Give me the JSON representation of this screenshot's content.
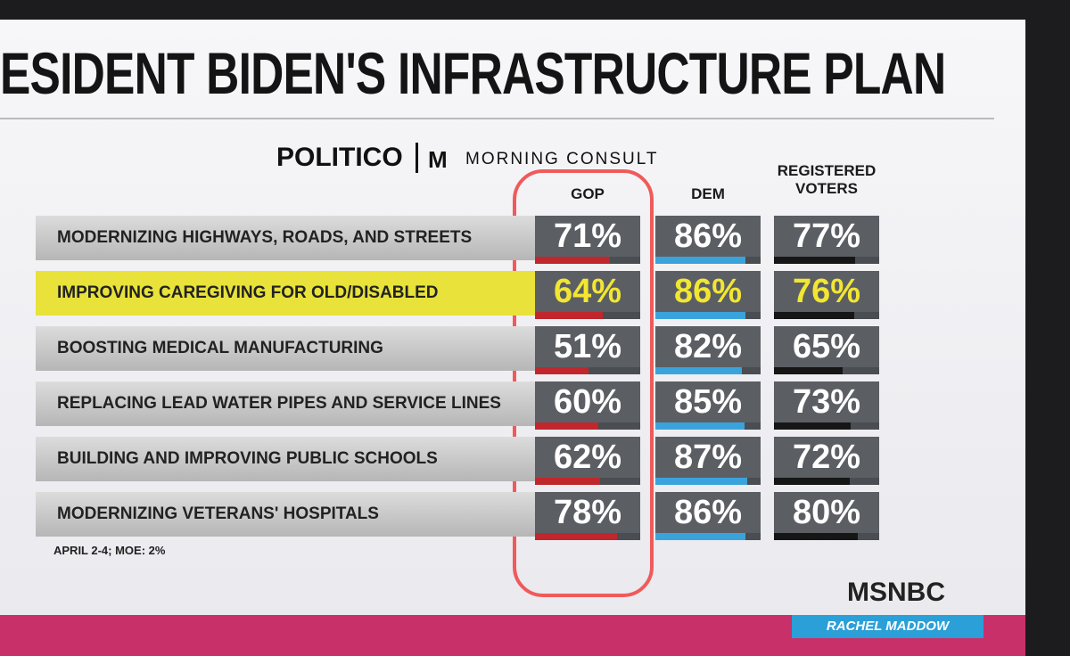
{
  "header": {
    "title": "ESIDENT BIDEN'S INFRASTRUCTURE PLAN",
    "sources": [
      "POLITICO",
      "MORNING CONSULT"
    ]
  },
  "table": {
    "columns": [
      "GOP",
      "DEM",
      "REGISTERED VOTERS"
    ],
    "bar_colors": [
      "#c0272d",
      "#3ba3dc",
      "#161616"
    ],
    "rows": [
      {
        "label": "MODERNIZING HIGHWAYS, ROADS, AND STREETS",
        "values": [
          71,
          86,
          77
        ],
        "value_labels": [
          "71%",
          "86%",
          "77%"
        ]
      },
      {
        "label": "IMPROVING CAREGIVING FOR OLD/DISABLED",
        "values": [
          64,
          86,
          76
        ],
        "value_labels": [
          "64%",
          "86%",
          "76%"
        ],
        "highlighted": true
      },
      {
        "label": "BOOSTING MEDICAL MANUFACTURING",
        "values": [
          51,
          82,
          65
        ],
        "value_labels": [
          "51%",
          "82%",
          "65%"
        ]
      },
      {
        "label": "REPLACING LEAD WATER PIPES AND SERVICE LINES",
        "values": [
          60,
          85,
          73
        ],
        "value_labels": [
          "60%",
          "85%",
          "73%"
        ]
      },
      {
        "label": "BUILDING AND IMPROVING PUBLIC SCHOOLS",
        "values": [
          62,
          87,
          72
        ],
        "value_labels": [
          "62%",
          "87%",
          "72%"
        ]
      },
      {
        "label": "MODERNIZING VETERANS' HOSPITALS",
        "values": [
          78,
          86,
          80
        ],
        "value_labels": [
          "78%",
          "86%",
          "80%"
        ]
      }
    ]
  },
  "footnote": "APRIL 2-4; MOE: 2%",
  "network": "MSNBC",
  "show": "RACHEL MADDOW"
}
